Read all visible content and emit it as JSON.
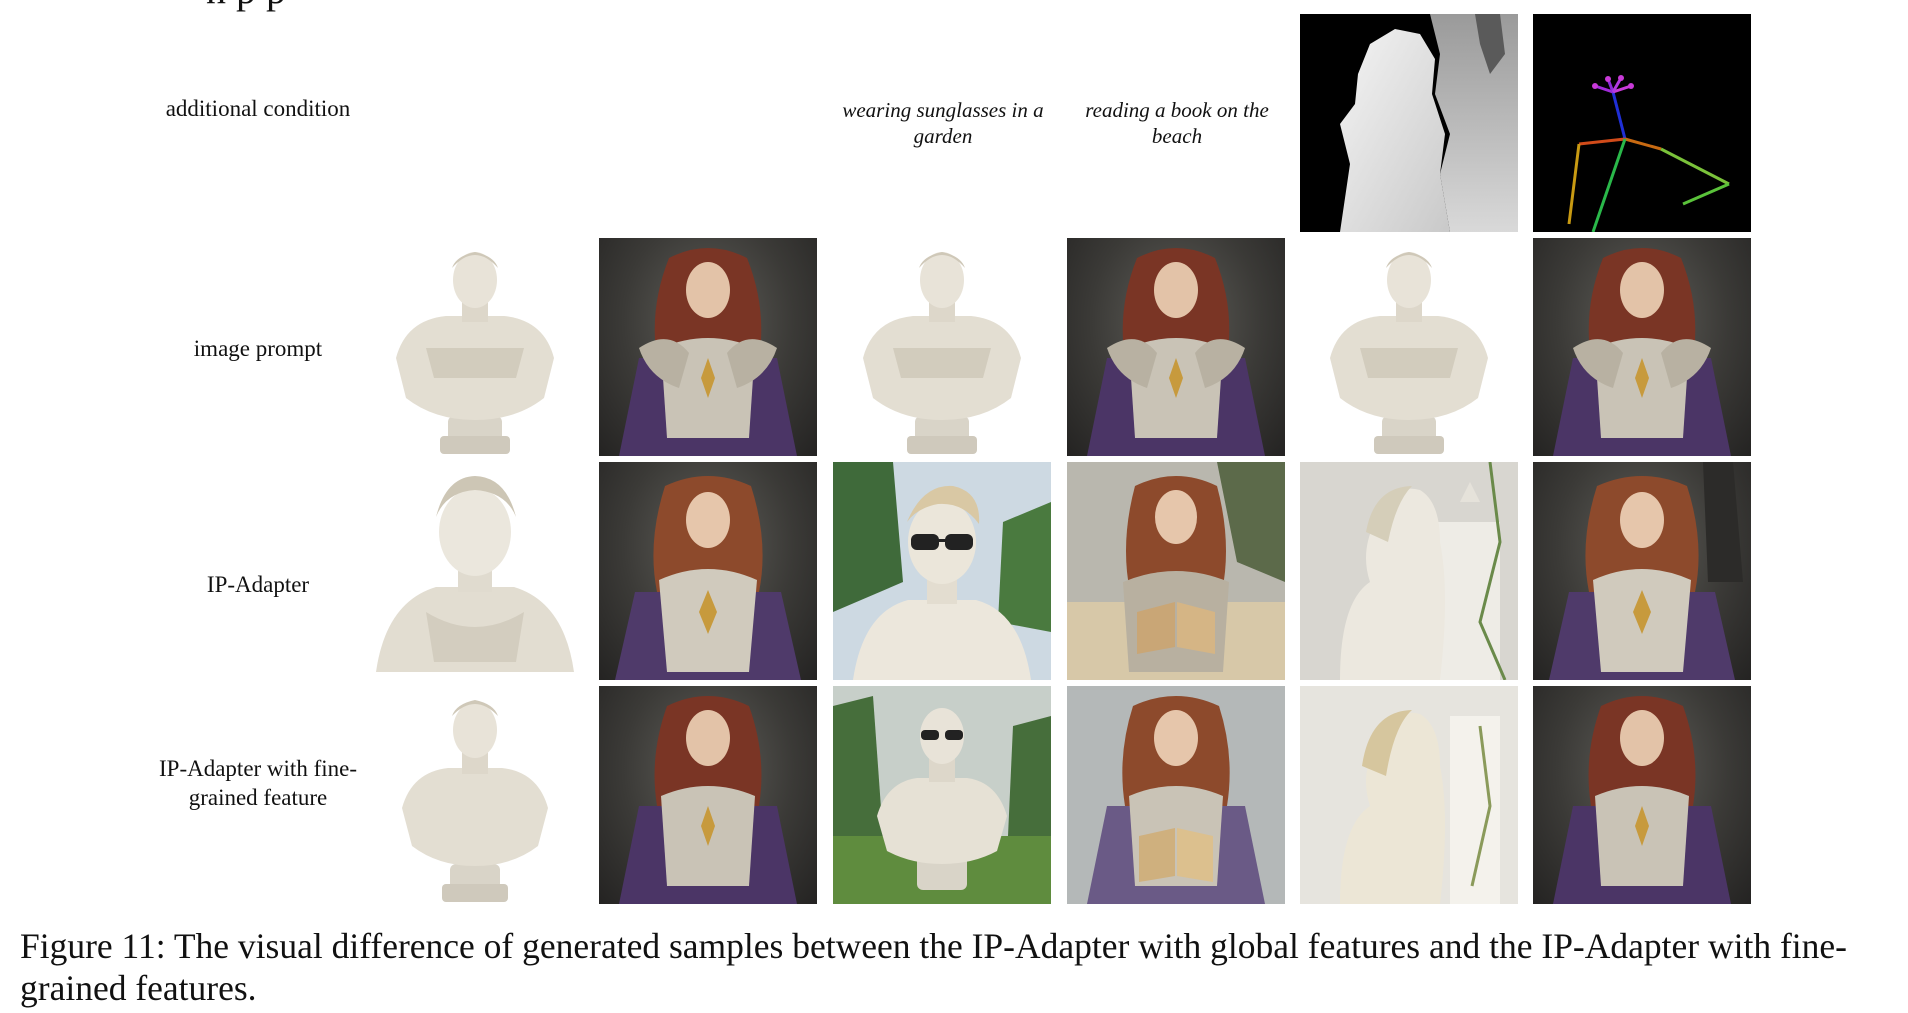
{
  "figure": {
    "clipped_heading": "n p   p",
    "caption": "Figure 11: The visual difference of generated samples between the IP-Adapter with global features and the IP-Adapter with fine-grained features."
  },
  "rows": {
    "additional_condition": "additional condition",
    "image_prompt": "image prompt",
    "ip_adapter": "IP-Adapter",
    "ip_adapter_fine": "IP-Adapter with fine-grained feature"
  },
  "conditions": {
    "text_1": "wearing sunglasses in a garden",
    "text_2": "reading a book on the beach"
  },
  "colors": {
    "marble": "#e6e2d8",
    "dark_bg": "#3b3a37",
    "hair": "#8a3f2a",
    "armor": "#c9c3b6",
    "cape": "#4b3566",
    "gold": "#c79a3d"
  }
}
